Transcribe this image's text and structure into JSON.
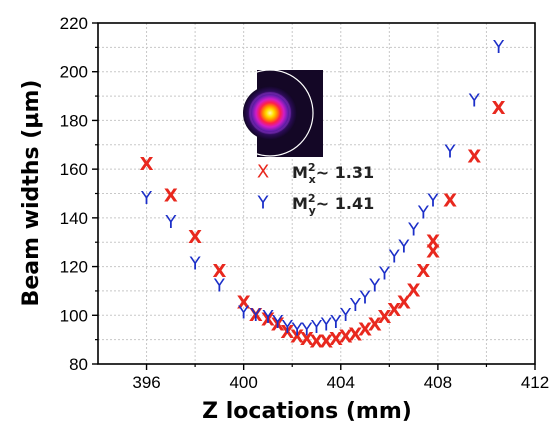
{
  "chart_data": {
    "type": "scatter",
    "xlabel": "Z locations (mm)",
    "ylabel": "Beam widths (µm)",
    "xlim": [
      394,
      412
    ],
    "ylim": [
      80,
      220
    ],
    "xticks": [
      396,
      400,
      404,
      408,
      412
    ],
    "yticks": [
      80,
      100,
      120,
      140,
      160,
      180,
      200,
      220
    ],
    "grid": true,
    "legend_position": "center",
    "series": [
      {
        "name": "M²x~ 1.31",
        "marker": "X",
        "color": "#e8281e",
        "points": [
          {
            "x": 396.0,
            "y": 162
          },
          {
            "x": 397.0,
            "y": 149
          },
          {
            "x": 398.0,
            "y": 132
          },
          {
            "x": 399.0,
            "y": 118
          },
          {
            "x": 400.0,
            "y": 105
          },
          {
            "x": 400.5,
            "y": 100
          },
          {
            "x": 401.0,
            "y": 98
          },
          {
            "x": 401.4,
            "y": 96
          },
          {
            "x": 401.8,
            "y": 93
          },
          {
            "x": 402.2,
            "y": 91
          },
          {
            "x": 402.6,
            "y": 90
          },
          {
            "x": 403.0,
            "y": 89
          },
          {
            "x": 403.4,
            "y": 89
          },
          {
            "x": 403.8,
            "y": 90
          },
          {
            "x": 404.2,
            "y": 91
          },
          {
            "x": 404.6,
            "y": 92
          },
          {
            "x": 405.0,
            "y": 94
          },
          {
            "x": 405.4,
            "y": 96
          },
          {
            "x": 405.8,
            "y": 99
          },
          {
            "x": 406.2,
            "y": 102
          },
          {
            "x": 406.6,
            "y": 105
          },
          {
            "x": 407.0,
            "y": 110
          },
          {
            "x": 407.4,
            "y": 118
          },
          {
            "x": 407.8,
            "y": 126
          },
          {
            "x": 407.8,
            "y": 130
          },
          {
            "x": 408.5,
            "y": 147
          },
          {
            "x": 409.5,
            "y": 165
          },
          {
            "x": 410.5,
            "y": 185
          }
        ]
      },
      {
        "name": "M²y~ 1.41",
        "marker": "Y",
        "color": "#1c2fc8",
        "points": [
          {
            "x": 396.0,
            "y": 148
          },
          {
            "x": 397.0,
            "y": 138
          },
          {
            "x": 398.0,
            "y": 121
          },
          {
            "x": 399.0,
            "y": 112
          },
          {
            "x": 400.0,
            "y": 101
          },
          {
            "x": 400.5,
            "y": 100
          },
          {
            "x": 401.0,
            "y": 99
          },
          {
            "x": 401.4,
            "y": 97
          },
          {
            "x": 401.8,
            "y": 95
          },
          {
            "x": 402.2,
            "y": 94
          },
          {
            "x": 402.6,
            "y": 94
          },
          {
            "x": 403.0,
            "y": 95
          },
          {
            "x": 403.4,
            "y": 96
          },
          {
            "x": 403.8,
            "y": 97
          },
          {
            "x": 404.2,
            "y": 100
          },
          {
            "x": 404.6,
            "y": 104
          },
          {
            "x": 405.0,
            "y": 107
          },
          {
            "x": 405.4,
            "y": 112
          },
          {
            "x": 405.8,
            "y": 117
          },
          {
            "x": 406.2,
            "y": 124
          },
          {
            "x": 406.6,
            "y": 128
          },
          {
            "x": 407.0,
            "y": 135
          },
          {
            "x": 407.4,
            "y": 142
          },
          {
            "x": 407.8,
            "y": 147
          },
          {
            "x": 408.5,
            "y": 167
          },
          {
            "x": 409.5,
            "y": 188
          },
          {
            "x": 410.5,
            "y": 210
          }
        ]
      }
    ],
    "legend": {
      "entries": [
        {
          "marker": "X",
          "color": "#e8281e",
          "prefix": "M",
          "sup": "2",
          "sub": "x",
          "text": "~ 1.31"
        },
        {
          "marker": "Y",
          "color": "#1c2fc8",
          "prefix": "M",
          "sup": "2",
          "sub": "y",
          "text": "~ 1.41"
        }
      ]
    }
  }
}
